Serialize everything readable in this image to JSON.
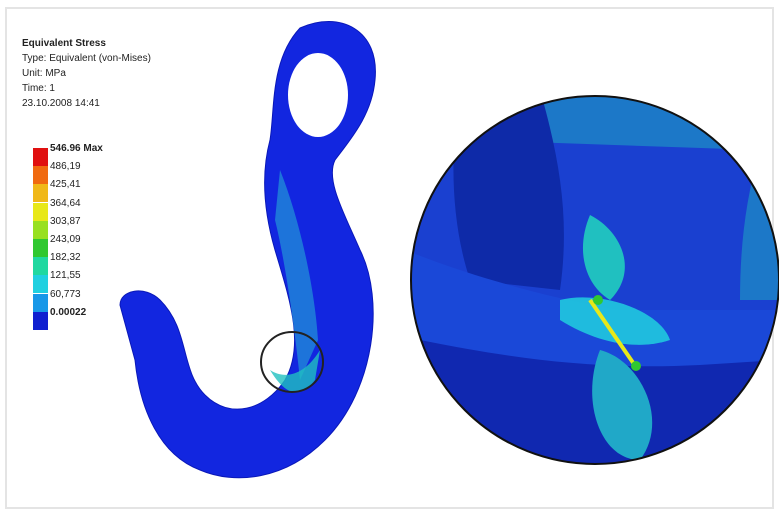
{
  "legend": {
    "title": "Equivalent Stress",
    "type": "Type: Equivalent (von-Mises)",
    "unit": "Unit: MPa",
    "time": "Time: 1",
    "date": "23.10.2008 14:41",
    "levels": [
      {
        "label": "546.96 Max",
        "color": "#e01010"
      },
      {
        "label": "486,19",
        "color": "#f06a10"
      },
      {
        "label": "425,41",
        "color": "#f0b818"
      },
      {
        "label": "364,64",
        "color": "#e8e818"
      },
      {
        "label": "303,87",
        "color": "#98e020"
      },
      {
        "label": "243,09",
        "color": "#30c830"
      },
      {
        "label": "182,32",
        "color": "#20d8a0"
      },
      {
        "label": "121,55",
        "color": "#20d0e0"
      },
      {
        "label": "60,773",
        "color": "#1898e8"
      },
      {
        "label": "0.00022",
        "color": "#1020d0"
      }
    ]
  }
}
